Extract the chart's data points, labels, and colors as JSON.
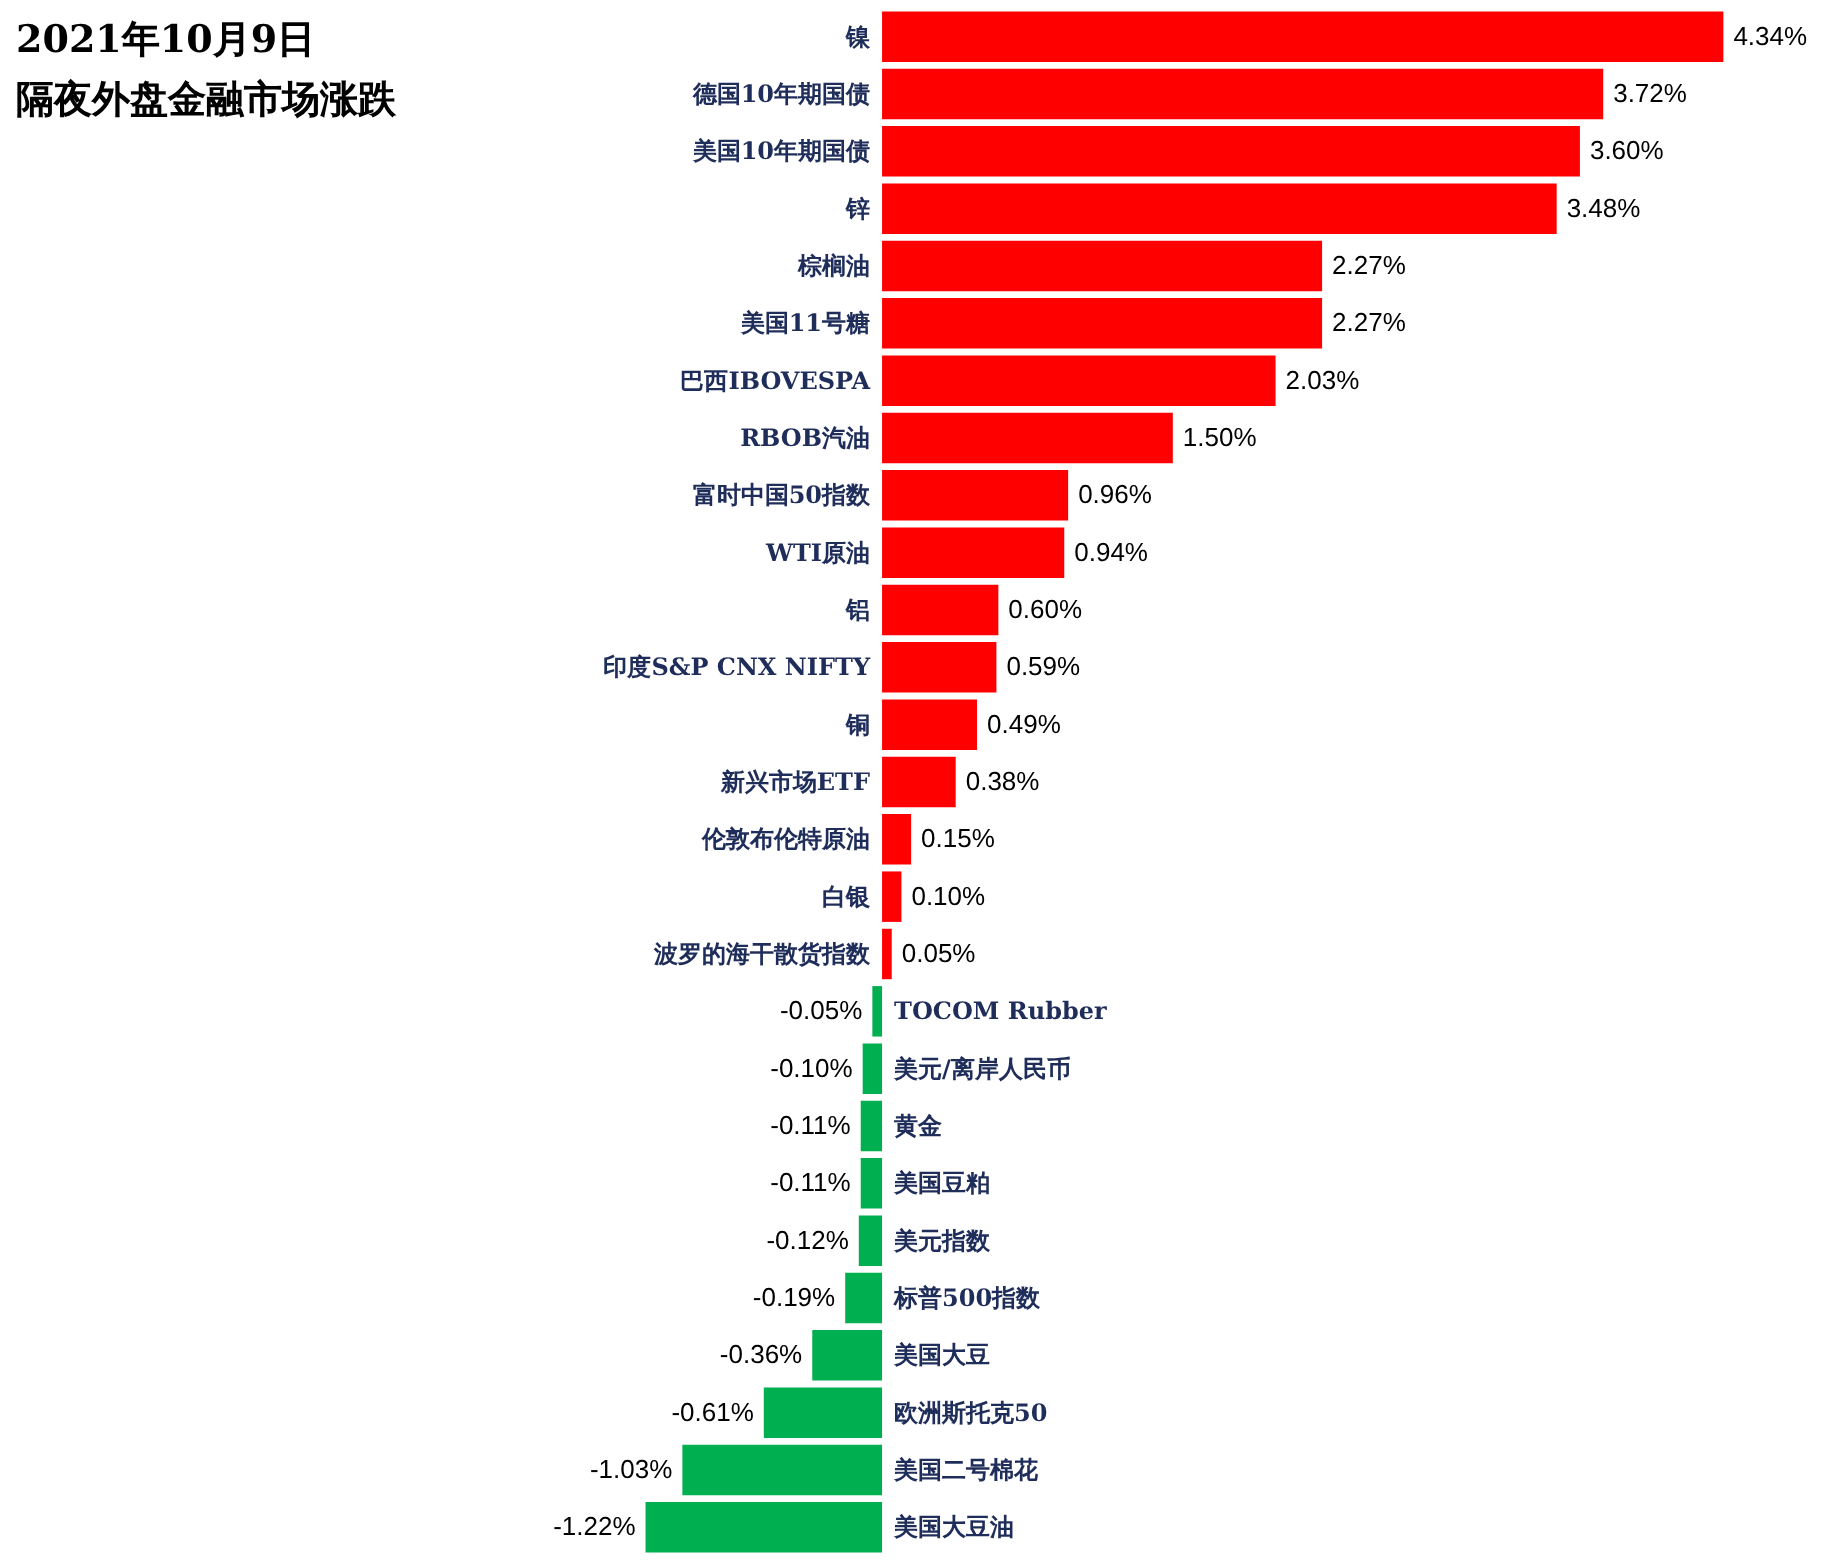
{
  "chart_data": {
    "type": "bar",
    "orientation": "horizontal",
    "title": "2021年10月9日",
    "subtitle": "隔夜外盘金融市场涨跌",
    "categories": [
      "镍",
      "德国10年期国债",
      "美国10年期国债",
      "锌",
      "棕榈油",
      "美国11号糖",
      "巴西IBOVESPA",
      "RBOB汽油",
      "富时中国50指数",
      "WTI原油",
      "铝",
      "印度S&P CNX NIFTY",
      "铜",
      "新兴市场ETF",
      "伦敦布伦特原油",
      "白银",
      "波罗的海干散货指数",
      "TOCOM Rubber",
      "美元/离岸人民币",
      "黄金",
      "美国豆粕",
      "美元指数",
      "标普500指数",
      "美国大豆",
      "欧洲斯托克50",
      "美国二号棉花",
      "美国大豆油"
    ],
    "values": [
      4.34,
      3.72,
      3.6,
      3.48,
      2.27,
      2.27,
      2.03,
      1.5,
      0.96,
      0.94,
      0.6,
      0.59,
      0.49,
      0.38,
      0.15,
      0.1,
      0.05,
      -0.05,
      -0.1,
      -0.11,
      -0.11,
      -0.12,
      -0.19,
      -0.36,
      -0.61,
      -1.03,
      -1.22
    ],
    "value_labels": [
      "4.34%",
      "3.72%",
      "3.60%",
      "3.48%",
      "2.27%",
      "2.27%",
      "2.03%",
      "1.50%",
      "0.96%",
      "0.94%",
      "0.60%",
      "0.59%",
      "0.49%",
      "0.38%",
      "0.15%",
      "0.10%",
      "0.05%",
      "-0.05%",
      "-0.10%",
      "-0.11%",
      "-0.11%",
      "-0.12%",
      "-0.19%",
      "-0.36%",
      "-0.61%",
      "-1.03%",
      "-1.22%"
    ],
    "colors": [
      "#ff0000",
      "#ff0000",
      "#ff0000",
      "#ff0000",
      "#ff0000",
      "#ff0000",
      "#ff0000",
      "#ff0000",
      "#ff0000",
      "#ff0000",
      "#ff0000",
      "#ff0000",
      "#ff0000",
      "#ff0000",
      "#ff0000",
      "#ff0000",
      "#ff0000",
      "#00b050",
      "#00b050",
      "#00b050",
      "#00b050",
      "#00b050",
      "#00b050",
      "#00b050",
      "#00b050",
      "#00b050",
      "#00b050"
    ],
    "xlim": [
      -4.55,
      4.89
    ],
    "tick_labels": false,
    "grid": false
  }
}
